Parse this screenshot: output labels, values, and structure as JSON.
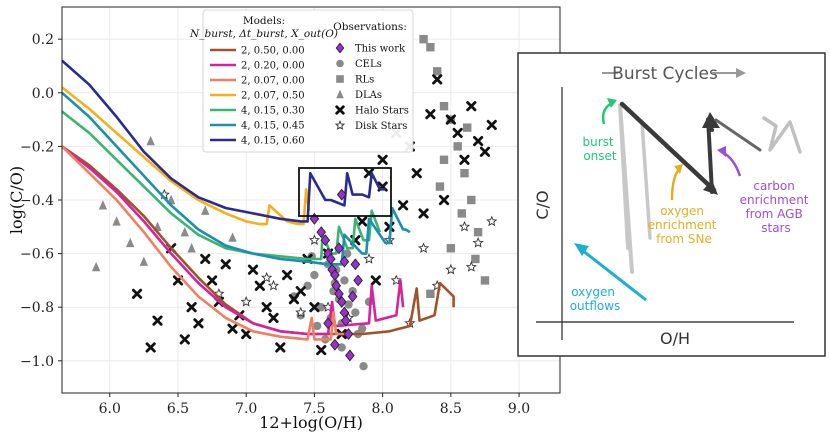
{
  "chart_data": [
    {
      "type": "line",
      "title": "",
      "xlabel": "12+log(O/H)",
      "ylabel": "log(C/O)",
      "xlim": [
        5.65,
        9.3
      ],
      "ylim": [
        -1.12,
        0.32
      ],
      "xticks": [
        6.0,
        6.5,
        7.0,
        7.5,
        8.0,
        8.5,
        9.0
      ],
      "xtick_labels": [
        "6.0",
        "6.5",
        "7.0",
        "7.5",
        "8.0",
        "8.5",
        "9.0"
      ],
      "yticks": [
        0.2,
        0.0,
        -0.2,
        -0.4,
        -0.6,
        -0.8,
        -1.0
      ],
      "ytick_labels": [
        "0.2",
        "0.0",
        "−0.2",
        "−0.4",
        "−0.6",
        "−0.8",
        "−1.0"
      ],
      "grid": true,
      "legend_models_header": [
        "Models:",
        "N_burst, Δt_burst, X_out(O)"
      ],
      "legend_obs_header": "Observations:",
      "legend_placement": "top-center",
      "series": [
        {
          "name": "2, 0.50, 0.00",
          "color": "#a0522d",
          "x": [
            5.65,
            5.85,
            6.05,
            6.25,
            6.45,
            6.65,
            6.85,
            7.05,
            7.25,
            7.45,
            7.65,
            7.85,
            8.05,
            8.2,
            8.25,
            8.27,
            8.38,
            8.42,
            8.52,
            8.52
          ],
          "y": [
            -0.2,
            -0.27,
            -0.36,
            -0.46,
            -0.58,
            -0.69,
            -0.79,
            -0.86,
            -0.89,
            -0.9,
            -0.9,
            -0.9,
            -0.89,
            -0.87,
            -0.73,
            -0.85,
            -0.83,
            -0.71,
            -0.76,
            -0.8
          ]
        },
        {
          "name": "2, 0.20, 0.00",
          "color": "#d4249c",
          "x": [
            5.65,
            5.85,
            6.05,
            6.25,
            6.45,
            6.65,
            6.85,
            7.05,
            7.25,
            7.45,
            7.6,
            7.63,
            7.65,
            7.9,
            7.92,
            7.95,
            8.1,
            8.13,
            8.15
          ],
          "y": [
            -0.2,
            -0.28,
            -0.37,
            -0.48,
            -0.6,
            -0.71,
            -0.8,
            -0.86,
            -0.89,
            -0.9,
            -0.9,
            -0.78,
            -0.87,
            -0.86,
            -0.72,
            -0.85,
            -0.83,
            -0.7,
            -0.8
          ]
        },
        {
          "name": "2, 0.07, 0.00",
          "color": "#f08060",
          "x": [
            5.65,
            5.85,
            6.05,
            6.25,
            6.45,
            6.65,
            6.85,
            7.05,
            7.25,
            7.45,
            7.48,
            7.5,
            7.62,
            7.64,
            7.66,
            7.75
          ],
          "y": [
            -0.2,
            -0.3,
            -0.4,
            -0.52,
            -0.65,
            -0.76,
            -0.84,
            -0.89,
            -0.91,
            -0.92,
            -0.84,
            -0.92,
            -0.92,
            -0.82,
            -0.9,
            -0.9
          ]
        },
        {
          "name": "2, 0.07, 0.50",
          "color": "#f5b01c",
          "x": [
            5.65,
            5.85,
            6.05,
            6.25,
            6.45,
            6.65,
            6.85,
            7.0,
            7.1,
            7.15,
            7.17,
            7.3,
            7.38,
            7.42,
            7.44,
            7.46
          ],
          "y": [
            0.02,
            -0.06,
            -0.15,
            -0.24,
            -0.33,
            -0.4,
            -0.45,
            -0.48,
            -0.49,
            -0.49,
            -0.42,
            -0.48,
            -0.49,
            -0.49,
            -0.36,
            -0.44
          ]
        },
        {
          "name": "4, 0.15, 0.30",
          "color": "#3cb371",
          "x": [
            5.65,
            5.85,
            6.05,
            6.25,
            6.45,
            6.65,
            6.85,
            7.05,
            7.25,
            7.45,
            7.55,
            7.56,
            7.62,
            7.66,
            7.68,
            7.74,
            7.78,
            7.8,
            7.86,
            7.9,
            7.92,
            7.98
          ],
          "y": [
            -0.07,
            -0.15,
            -0.25,
            -0.35,
            -0.45,
            -0.53,
            -0.58,
            -0.6,
            -0.61,
            -0.62,
            -0.62,
            -0.53,
            -0.6,
            -0.6,
            -0.5,
            -0.58,
            -0.58,
            -0.47,
            -0.55,
            -0.55,
            -0.44,
            -0.52
          ]
        },
        {
          "name": "4, 0.15, 0.45",
          "color": "#1a8fb0",
          "x": [
            5.65,
            5.85,
            6.05,
            6.25,
            6.45,
            6.65,
            6.85,
            7.05,
            7.25,
            7.45,
            7.6,
            7.7,
            7.72,
            7.85,
            7.88,
            7.9,
            8.02,
            8.05,
            8.07,
            8.15,
            8.17,
            8.2
          ],
          "y": [
            0.0,
            -0.09,
            -0.2,
            -0.31,
            -0.42,
            -0.51,
            -0.57,
            -0.6,
            -0.62,
            -0.63,
            -0.64,
            -0.64,
            -0.53,
            -0.6,
            -0.6,
            -0.47,
            -0.56,
            -0.56,
            -0.43,
            -0.51,
            -0.51,
            -0.52
          ]
        },
        {
          "name": "4, 0.15, 0.60",
          "color": "#2b2b8f",
          "x": [
            5.65,
            5.85,
            6.05,
            6.25,
            6.45,
            6.65,
            6.85,
            7.05,
            7.25,
            7.4,
            7.45,
            7.47,
            7.58,
            7.62,
            7.72,
            7.74,
            7.78,
            7.85,
            7.9,
            7.92,
            7.98,
            8.02
          ],
          "y": [
            0.12,
            0.03,
            -0.09,
            -0.22,
            -0.32,
            -0.39,
            -0.43,
            -0.45,
            -0.47,
            -0.48,
            -0.48,
            -0.3,
            -0.4,
            -0.4,
            -0.42,
            -0.3,
            -0.38,
            -0.38,
            -0.39,
            -0.3,
            -0.36,
            -0.36
          ]
        }
      ],
      "observations": [
        {
          "name": "This work",
          "marker": "diamond",
          "color": "#9b30d0",
          "x": [
            7.5,
            7.55,
            7.58,
            7.6,
            7.62,
            7.63,
            7.65,
            7.66,
            7.68,
            7.7,
            7.72,
            7.73,
            7.75,
            7.78,
            7.8,
            7.82,
            7.7,
            7.65,
            7.76,
            7.6,
            7.68,
            7.72
          ],
          "y": [
            -0.47,
            -0.52,
            -0.55,
            -0.6,
            -0.62,
            -0.66,
            -0.68,
            -0.72,
            -0.75,
            -0.78,
            -0.82,
            -0.85,
            -0.9,
            -0.76,
            -0.64,
            -0.7,
            -0.38,
            -0.94,
            -0.98,
            -0.86,
            -0.58,
            -0.63
          ]
        },
        {
          "name": "CELs",
          "marker": "circle",
          "color": "#8a8a8a",
          "x": [
            7.35,
            7.45,
            7.5,
            7.55,
            7.6,
            7.62,
            7.65,
            7.68,
            7.7,
            7.72,
            7.75,
            7.78,
            7.8,
            7.85,
            7.9,
            7.4,
            7.58,
            7.66,
            7.82,
            7.74,
            7.52,
            7.64,
            7.7,
            7.86,
            7.48
          ],
          "y": [
            -0.76,
            -0.72,
            -0.68,
            -0.8,
            -0.64,
            -0.84,
            -0.71,
            -0.77,
            -0.86,
            -0.7,
            -0.79,
            -0.74,
            -0.82,
            -0.88,
            -0.78,
            -0.83,
            -0.92,
            -0.66,
            -0.9,
            -0.6,
            -0.87,
            -0.74,
            -0.95,
            -1.02,
            -0.61
          ]
        },
        {
          "name": "RLs",
          "marker": "square",
          "color": "#8a8a8a",
          "x": [
            8.3,
            8.35,
            8.4,
            8.45,
            8.5,
            8.55,
            8.6,
            8.65,
            8.7,
            8.42,
            8.58,
            8.62,
            8.68,
            8.75,
            8.35,
            8.5,
            8.45
          ],
          "y": [
            0.2,
            0.17,
            0.08,
            -0.05,
            -0.1,
            -0.2,
            -0.3,
            -0.4,
            -0.52,
            -0.35,
            -0.45,
            -0.13,
            -0.62,
            -0.7,
            -0.75,
            -0.58,
            -0.25
          ]
        },
        {
          "name": "DLAs",
          "marker": "triangle",
          "color": "#8a8a8a",
          "x": [
            5.9,
            5.95,
            6.05,
            6.15,
            6.25,
            6.35,
            6.45,
            6.55,
            6.7,
            6.9,
            6.3,
            6.6
          ],
          "y": [
            -0.65,
            -0.42,
            -0.48,
            -0.56,
            -0.63,
            -0.5,
            -0.4,
            -0.52,
            -0.44,
            -0.54,
            -0.18,
            -0.58
          ]
        },
        {
          "name": "Halo Stars",
          "marker": "x",
          "color": "#111111",
          "x": [
            6.2,
            6.35,
            6.5,
            6.6,
            6.7,
            6.8,
            6.9,
            7.0,
            7.1,
            7.2,
            7.3,
            7.4,
            7.5,
            7.6,
            7.7,
            7.8,
            7.9,
            8.0,
            8.1,
            8.2,
            8.3,
            8.4,
            8.5,
            8.6,
            8.7,
            8.8,
            6.3,
            6.45,
            6.55,
            6.75,
            6.95,
            7.05,
            7.25,
            7.35,
            7.45,
            8.05,
            8.25,
            8.45,
            8.65,
            8.0,
            8.15,
            8.35,
            8.55,
            7.85,
            6.65,
            6.85,
            7.15,
            7.55,
            7.95,
            8.75
          ],
          "y": [
            -0.75,
            -0.85,
            -0.7,
            -0.8,
            -0.62,
            -0.78,
            -0.88,
            -0.9,
            -0.72,
            -0.84,
            -0.68,
            -0.74,
            -0.8,
            -0.6,
            -0.9,
            -0.55,
            -0.3,
            -0.35,
            -0.15,
            -0.2,
            -0.45,
            0.05,
            -0.1,
            -0.25,
            -0.18,
            -0.12,
            -0.95,
            -0.58,
            -0.92,
            -0.7,
            -0.83,
            -0.66,
            -0.95,
            -0.77,
            -0.62,
            -0.5,
            -0.3,
            -0.4,
            -0.05,
            -0.25,
            -0.42,
            -0.08,
            -0.15,
            -0.48,
            -0.86,
            -0.64,
            -0.8,
            -0.96,
            -0.7,
            -0.22
          ]
        },
        {
          "name": "Disk Stars",
          "marker": "star",
          "color": "#333333",
          "x": [
            6.4,
            6.8,
            7.0,
            7.2,
            7.4,
            7.6,
            7.9,
            8.1,
            8.3,
            8.5,
            8.6,
            8.7,
            8.8,
            7.5,
            7.75,
            8.05,
            8.2,
            8.4,
            7.15,
            8.65
          ],
          "y": [
            -0.38,
            -0.75,
            -0.78,
            -0.72,
            -0.82,
            -0.8,
            -0.62,
            -0.7,
            -0.58,
            -0.66,
            -0.5,
            -0.56,
            -0.48,
            -0.55,
            -0.84,
            -0.55,
            -0.86,
            -0.72,
            -0.69,
            -0.65
          ]
        }
      ]
    },
    {
      "type": "schematic",
      "title": "Burst Cycles",
      "xlabel": "O/H",
      "ylabel": "C/O",
      "annotations": [
        {
          "lines": [
            "burst",
            "onset"
          ],
          "color": "#22c77a"
        },
        {
          "lines": [
            "oxygen",
            "enrichment",
            "from SNe"
          ],
          "color": "#e0b020"
        },
        {
          "lines": [
            "carbon",
            "enrichment",
            "from AGB",
            "stars"
          ],
          "color": "#9b4fd6"
        },
        {
          "lines": [
            "oxygen",
            "outflows"
          ],
          "color": "#1ab0d0"
        }
      ]
    }
  ],
  "colors": {
    "grid": "#ebebeb",
    "schematic_gray": "#b0b0b0",
    "schematic_dark": "#333333"
  }
}
